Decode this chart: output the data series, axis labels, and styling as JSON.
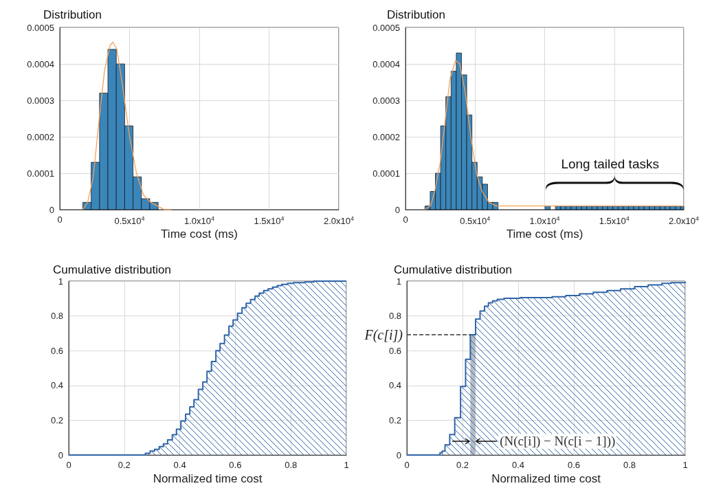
{
  "chart_data": [
    {
      "type": "histogram",
      "title": "Distribution",
      "xlabel": "Time cost (ms)",
      "xlim": [
        0,
        20000
      ],
      "xticks": [
        0,
        {
          "value": 5000,
          "label": "0.5x10$^{4}$"
        },
        {
          "value": 10000,
          "label": "1.0x10$^{4}$"
        },
        {
          "value": 15000,
          "label": "1.5x10$^{4}$"
        },
        {
          "value": 20000,
          "label": "2.0x10$^{4}$"
        }
      ],
      "ylim": [
        0,
        0.0005
      ],
      "yticks": [
        0,
        0.0001,
        0.0002,
        0.0003,
        0.0004,
        0.0005
      ],
      "grid": true,
      "series": [
        {
          "color": "#3a86bb",
          "bins": [
            1650,
            2250,
            2850,
            3450,
            4050,
            4650,
            5250,
            5850,
            6450,
            7050,
            7650
          ],
          "values": [
            2e-05,
            0.00013,
            0.00032,
            0.00044,
            0.0004,
            0.00023,
            9e-05,
            3e-05,
            2e-05,
            0
          ]
        },
        {
          "type": "line",
          "color": "#f5a05a",
          "x": [
            1650,
            2000,
            2400,
            2800,
            3200,
            3600,
            3800,
            4100,
            4500,
            5000,
            5500,
            6000,
            6500,
            7000,
            7500,
            8000
          ],
          "values": [
            0,
            2e-05,
            9e-05,
            0.00024,
            0.00038,
            0.00045,
            0.00046,
            0.00044,
            0.00034,
            0.0002,
            0.0001,
            4e-05,
            2e-05,
            1e-05,
            0,
            0
          ]
        }
      ]
    },
    {
      "type": "histogram",
      "title": "Distribution",
      "xlabel": "Time cost (ms)",
      "xlim": [
        0,
        20000
      ],
      "xticks": [
        0,
        {
          "value": 5000,
          "label": "0.5x10$^{4}$"
        },
        {
          "value": 10000,
          "label": "1.0x10$^{4}$"
        },
        {
          "value": 15000,
          "label": "1.5x10$^{4}$"
        },
        {
          "value": 20000,
          "label": "2.0x10$^{4}$"
        }
      ],
      "ylim": [
        0,
        0.0005
      ],
      "yticks": [
        0,
        0.0001,
        0.0002,
        0.0003,
        0.0004,
        0.0005
      ],
      "grid": true,
      "annotations": [
        "Long tailed tasks"
      ],
      "series": [
        {
          "color": "#3a86bb",
          "bins": [
            1400,
            1775,
            2150,
            2525,
            2900,
            3275,
            3650,
            4025,
            4400,
            4775,
            5150,
            5525,
            5900,
            6275,
            6650,
            10025,
            10400,
            10775,
            11150,
            11525,
            11900,
            12275,
            12650,
            13025,
            13400,
            13775,
            14150,
            14525,
            14900,
            15275,
            15650,
            16025,
            16400,
            16775,
            17150,
            17525,
            17900,
            18275,
            18650,
            19025,
            19400,
            19775,
            20000
          ],
          "values": [
            1e-05,
            5e-05,
            0.0001,
            0.00023,
            0.00031,
            0.00038,
            0.00043,
            0.00037,
            0.00026,
            0.00013,
            9e-05,
            7e-05,
            2e-05,
            2e-05,
            0,
            1e-05,
            0,
            1e-05,
            1e-05,
            1e-05,
            1e-05,
            1e-05,
            1e-05,
            1e-05,
            1e-05,
            1e-05,
            1e-05,
            1e-05,
            1e-05,
            1e-05,
            1e-05,
            1e-05,
            1e-05,
            1e-05,
            1e-05,
            1e-05,
            1e-05,
            1e-05,
            1e-05,
            1e-05,
            1e-05,
            1e-05
          ]
        },
        {
          "type": "line",
          "color": "#f5a05a",
          "x": [
            1400,
            1800,
            2100,
            2500,
            2900,
            3200,
            3600,
            3900,
            4300,
            4700,
            5100,
            5500,
            6000,
            6500,
            7000,
            8000,
            9000,
            10000,
            14000,
            16000,
            18000,
            19000,
            20000
          ],
          "values": [
            0,
            1e-05,
            5e-05,
            0.00013,
            0.00026,
            0.00036,
            0.00041,
            0.0004,
            0.00032,
            0.0002,
            0.0001,
            5e-05,
            2e-05,
            1e-05,
            null,
            null,
            null,
            1e-05,
            1e-05,
            1e-05,
            1e-05,
            1e-05,
            1e-05
          ]
        }
      ]
    },
    {
      "type": "area",
      "title": "Cumulative distribution",
      "xlabel": "Normalized time cost",
      "xlim": [
        0,
        1
      ],
      "xticks": [
        0,
        0.2,
        0.4,
        0.6,
        0.8,
        1
      ],
      "ylim": [
        0,
        1
      ],
      "yticks": [
        0,
        0.2,
        0.4,
        0.6,
        0.8,
        1
      ],
      "grid": true,
      "series": [
        {
          "color": "#2e64a8",
          "x": [
            0,
            0.276,
            0.293,
            0.309,
            0.326,
            0.341,
            0.356,
            0.373,
            0.388,
            0.404,
            0.421,
            0.436,
            0.451,
            0.467,
            0.483,
            0.498,
            0.514,
            0.53,
            0.545,
            0.561,
            0.577,
            0.592,
            0.608,
            0.624,
            0.639,
            0.655,
            0.671,
            0.686,
            0.702,
            0.718,
            0.734,
            0.751,
            0.767,
            0.788,
            0.809,
            0.85,
            0.883,
            1
          ],
          "values": [
            0,
            0.01,
            0.023,
            0.033,
            0.049,
            0.065,
            0.087,
            0.117,
            0.149,
            0.196,
            0.235,
            0.277,
            0.318,
            0.378,
            0.42,
            0.481,
            0.538,
            0.6,
            0.641,
            0.69,
            0.741,
            0.777,
            0.815,
            0.847,
            0.873,
            0.894,
            0.914,
            0.931,
            0.946,
            0.956,
            0.965,
            0.974,
            0.981,
            0.987,
            0.991,
            0.995,
            1,
            1
          ]
        }
      ]
    },
    {
      "type": "area",
      "title": "Cumulative distribution",
      "xlabel": "Normalized time cost",
      "xlim": [
        0,
        1
      ],
      "xticks": [
        0,
        0.2,
        0.4,
        0.6,
        0.8,
        1
      ],
      "ylim": [
        0,
        1
      ],
      "yticks": [
        0,
        0.2,
        0.4,
        0.6,
        0.8,
        1
      ],
      "grid": true,
      "annotations": [
        {
          "text": "(N(c[i]) − N(c[i − 1]))",
          "x": 0.247,
          "y": 0.08
        }
      ],
      "ref_lines": [
        {
          "axis": "y",
          "value": 0.692,
          "label": "F(c[i])",
          "color": "#333333",
          "line_style": "dashed"
        }
      ],
      "bands": [
        {
          "axis": "x",
          "from": 0.228,
          "to": 0.247,
          "color": "#a9b0b8"
        }
      ],
      "series": [
        {
          "color": "#2e64a8",
          "x": [
            0,
            0.119,
            0.127,
            0.137,
            0.154,
            0.172,
            0.193,
            0.211,
            0.228,
            0.247,
            0.263,
            0.279,
            0.293,
            0.308,
            0.325,
            0.349,
            0.407,
            0.456,
            0.522,
            0.571,
            0.62,
            0.67,
            0.719,
            0.768,
            0.818,
            0.867,
            0.916,
            0.949,
            1
          ],
          "values": [
            0,
            0.013,
            0.023,
            0.059,
            0.118,
            0.215,
            0.395,
            0.551,
            0.692,
            0.782,
            0.828,
            0.856,
            0.876,
            0.886,
            0.895,
            0.901,
            0.905,
            0.905,
            0.91,
            0.917,
            0.927,
            0.936,
            0.946,
            0.956,
            0.968,
            0.978,
            0.987,
            0.991,
            0.997
          ]
        }
      ]
    }
  ]
}
